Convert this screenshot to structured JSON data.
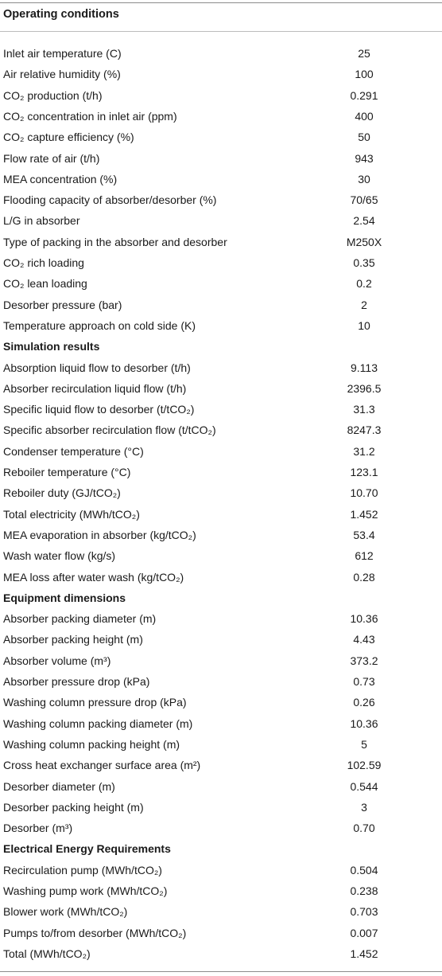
{
  "title": "Operating conditions",
  "rows": [
    {
      "label": "Inlet air temperature (C)",
      "value": "25"
    },
    {
      "label": "Air relative humidity (%)",
      "value": "100"
    },
    {
      "label": "CO₂ production (t/h)",
      "value": "0.291"
    },
    {
      "label": "CO₂ concentration in inlet air (ppm)",
      "value": "400"
    },
    {
      "label": "CO₂ capture efficiency (%)",
      "value": "50"
    },
    {
      "label": "Flow rate of air (t/h)",
      "value": "943"
    },
    {
      "label": "MEA concentration (%)",
      "value": "30"
    },
    {
      "label": "Flooding capacity of absorber/desorber (%)",
      "value": "70/65"
    },
    {
      "label": "L/G in absorber",
      "value": "2.54"
    },
    {
      "label": "Type of packing in the absorber and desorber",
      "value": "M250X"
    },
    {
      "label": "CO₂ rich loading",
      "value": "0.35"
    },
    {
      "label": "CO₂ lean loading",
      "value": "0.2"
    },
    {
      "label": "Desorber pressure (bar)",
      "value": "2"
    },
    {
      "label": "Temperature approach on cold side (K)",
      "value": "10"
    },
    {
      "label": "Simulation results",
      "value": "",
      "section": true
    },
    {
      "label": "Absorption liquid flow to desorber (t/h)",
      "value": "9.113"
    },
    {
      "label": "Absorber recirculation liquid flow (t/h)",
      "value": "2396.5"
    },
    {
      "label": "Specific liquid flow to desorber (t/tCO₂)",
      "value": "31.3"
    },
    {
      "label": "Specific absorber recirculation flow (t/tCO₂)",
      "value": "8247.3"
    },
    {
      "label": "Condenser temperature (°C)",
      "value": "31.2"
    },
    {
      "label": "Reboiler temperature (°C)",
      "value": "123.1"
    },
    {
      "label": "Reboiler duty (GJ/tCO₂)",
      "value": "10.70"
    },
    {
      "label": "Total electricity (MWh/tCO₂)",
      "value": "1.452"
    },
    {
      "label": "MEA evaporation in absorber (kg/tCO₂)",
      "value": "53.4"
    },
    {
      "label": "Wash water flow (kg/s)",
      "value": "612"
    },
    {
      "label": "MEA loss after water wash (kg/tCO₂)",
      "value": "0.28"
    },
    {
      "label": "Equipment dimensions",
      "value": "",
      "section": true
    },
    {
      "label": "Absorber packing diameter (m)",
      "value": "10.36"
    },
    {
      "label": "Absorber packing height (m)",
      "value": "4.43"
    },
    {
      "label": "Absorber volume (m³)",
      "value": "373.2"
    },
    {
      "label": "Absorber pressure drop (kPa)",
      "value": "0.73"
    },
    {
      "label": "Washing column pressure drop (kPa)",
      "value": "0.26"
    },
    {
      "label": "Washing column packing diameter (m)",
      "value": "10.36"
    },
    {
      "label": "Washing column packing height (m)",
      "value": "5"
    },
    {
      "label": "Cross heat exchanger surface area (m²)",
      "value": "102.59"
    },
    {
      "label": "Desorber diameter (m)",
      "value": "0.544"
    },
    {
      "label": "Desorber packing height (m)",
      "value": "3"
    },
    {
      "label": "Desorber (m³)",
      "value": "0.70"
    },
    {
      "label": "Electrical Energy Requirements",
      "value": "",
      "section": true
    },
    {
      "label": "Recirculation pump (MWh/tCO₂)",
      "value": "0.504"
    },
    {
      "label": "Washing pump work (MWh/tCO₂)",
      "value": "0.238"
    },
    {
      "label": "Blower work (MWh/tCO₂)",
      "value": "0.703"
    },
    {
      "label": "Pumps to/from desorber (MWh/tCO₂)",
      "value": "0.007"
    },
    {
      "label": "Total (MWh/tCO₂)",
      "value": "1.452"
    }
  ]
}
